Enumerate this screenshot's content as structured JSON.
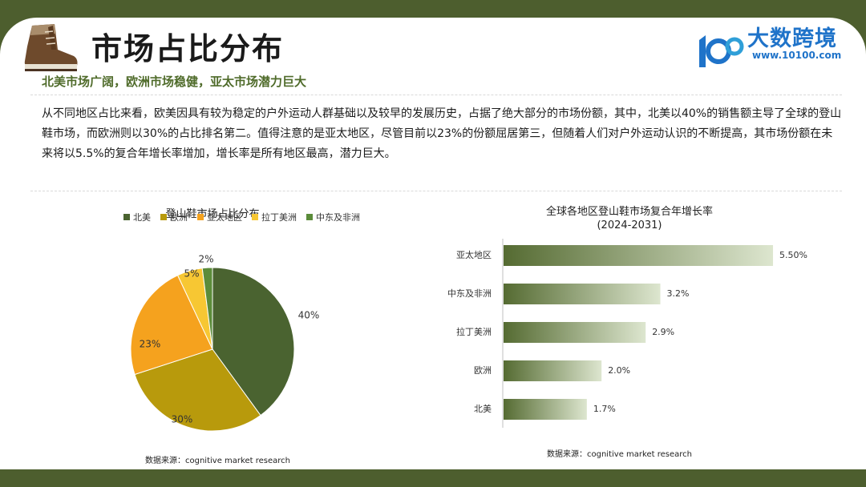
{
  "header": {
    "title": "市场占比分布",
    "subtitle": "北美市场广阔，欧洲市场稳健，亚太市场潜力巨大",
    "logo_text": "大数跨境",
    "logo_url": "www.10100.com",
    "boot_icon": "boot-icon"
  },
  "body": {
    "paragraph": "从不同地区占比来看，欧美因具有较为稳定的户外运动人群基础以及较早的发展历史，占据了绝大部分的市场份额，其中，北美以40%的销售额主导了全球的登山鞋市场，而欧洲则以30%的占比排名第二。值得注意的是亚太地区，尽管目前以23%的份额屈居第三，但随着人们对户外运动认识的不断提高，其市场份额在未来将以5.5%的复合年增长率增加，增长率是所有地区最高，潜力巨大。"
  },
  "colors": {
    "background": "#4d5e2e",
    "accent_green": "#4f6b2a",
    "logo_blue": "#1f73c9"
  },
  "chart_data": [
    {
      "type": "pie",
      "title": "登山鞋市场占比分布",
      "categories": [
        "北美",
        "欧洲",
        "亚太地区",
        "拉丁美洲",
        "中东及非洲"
      ],
      "values": [
        40,
        30,
        23,
        5,
        2
      ],
      "labels": [
        "40%",
        "30%",
        "23%",
        "5%",
        "2%"
      ],
      "colors": [
        "#4a6330",
        "#b89a0c",
        "#f5a21e",
        "#f7c733",
        "#5b8c3a"
      ],
      "legend": "top",
      "source": "数据来源：cognitive market research"
    },
    {
      "type": "bar",
      "orientation": "horizontal",
      "title": "全球各地区登山鞋市场复合年增长率",
      "subtitle": "(2024-2031)",
      "categories": [
        "亚太地区",
        "中东及非洲",
        "拉丁美洲",
        "欧洲",
        "北美"
      ],
      "values": [
        5.5,
        3.2,
        2.9,
        2.0,
        1.7
      ],
      "labels": [
        "5.50%",
        "3.2%",
        "2.9%",
        "2.0%",
        "1.7%"
      ],
      "xlim": [
        0,
        6
      ],
      "grid": false,
      "source": "数据来源：cognitive market research"
    }
  ]
}
